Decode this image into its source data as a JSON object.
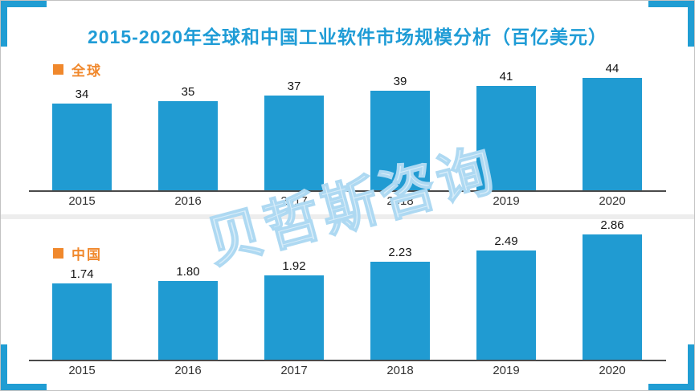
{
  "page": {
    "title": "2015-2020年全球和中国工业软件市场规模分析（百亿美元）",
    "watermark": "贝哲斯咨询",
    "colors": {
      "bar_blue": "#209bd2",
      "title_blue": "#1f9cd6",
      "legend_orange": "#f0882c",
      "corner_blue": "#209dd3",
      "watermark_blue": "#aed9f2"
    }
  },
  "chart_data": [
    {
      "type": "bar",
      "legend": "全球",
      "categories": [
        "2015",
        "2016",
        "2017",
        "2018",
        "2019",
        "2020"
      ],
      "values": [
        34,
        35,
        37,
        39,
        41,
        44
      ],
      "value_labels": [
        "34",
        "35",
        "37",
        "39",
        "41",
        "44"
      ],
      "title": "",
      "xlabel": "",
      "ylabel": "",
      "ylim": [
        0,
        44
      ],
      "grid": false,
      "legend_position": "top-left"
    },
    {
      "type": "bar",
      "legend": "中国",
      "categories": [
        "2015",
        "2016",
        "2017",
        "2018",
        "2019",
        "2020"
      ],
      "values": [
        1.74,
        1.8,
        1.92,
        2.23,
        2.49,
        2.86
      ],
      "value_labels": [
        "1.74",
        "1.80",
        "1.92",
        "2.23",
        "2.49",
        "2.86"
      ],
      "title": "",
      "xlabel": "",
      "ylabel": "",
      "ylim": [
        0,
        2.86
      ],
      "grid": false,
      "legend_position": "top-left"
    }
  ]
}
